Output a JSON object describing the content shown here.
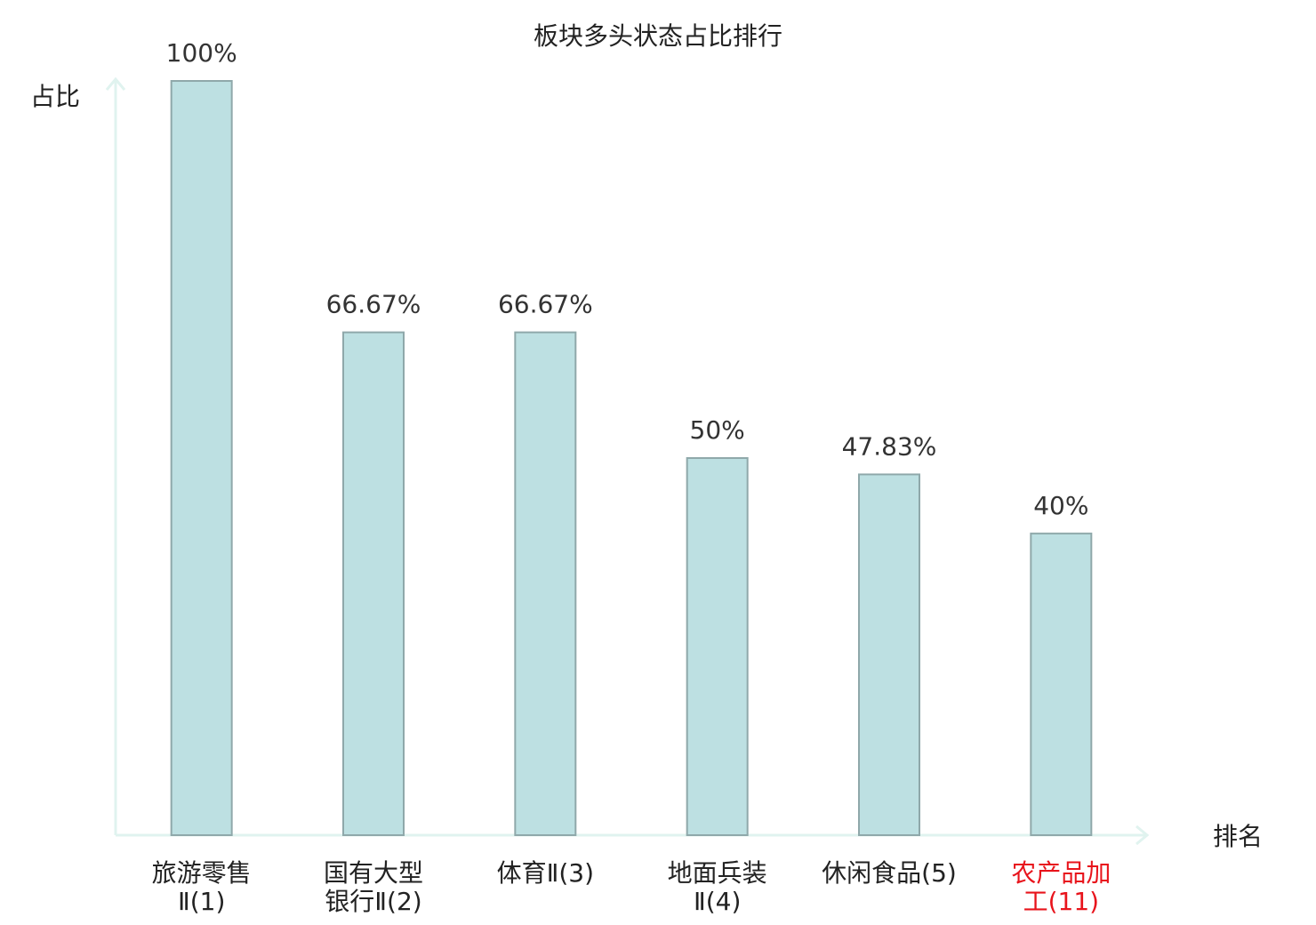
{
  "chart_data": {
    "type": "bar",
    "title": "板块多头状态占比排行",
    "y_label": "占比",
    "x_label": "排名",
    "categories": [
      [
        "旅游零售",
        "Ⅱ(1)"
      ],
      [
        "国有大型",
        "银行Ⅱ(2)"
      ],
      [
        "体育Ⅱ(3)"
      ],
      [
        "地面兵装",
        "Ⅱ(4)"
      ],
      [
        "休闲食品(5)"
      ],
      [
        "农产品加",
        "工(11)"
      ]
    ],
    "category_colors": [
      "#222222",
      "#222222",
      "#222222",
      "#222222",
      "#222222",
      "#e8141c"
    ],
    "values": [
      100,
      66.67,
      66.67,
      50,
      47.83,
      40
    ],
    "value_labels": [
      "100%",
      "66.67%",
      "66.67%",
      "50%",
      "47.83%",
      "40%"
    ],
    "color": "#bde0e2",
    "edge_color": "#8fa8aa",
    "axis_color": "#e0f3ef",
    "ylim": [
      0,
      100
    ]
  }
}
